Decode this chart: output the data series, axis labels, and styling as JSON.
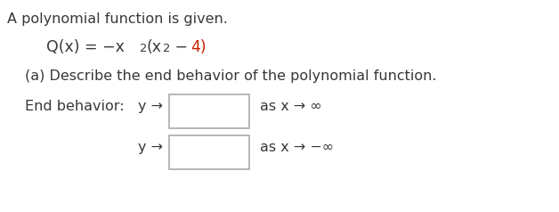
{
  "background_color": "#ffffff",
  "text_color": "#383838",
  "red_color": "#cc2200",
  "box_edge_color": "#aaaaaa",
  "box_face_color": "#ffffff",
  "line1": "A polynomial function is given.",
  "part_a": "(a) Describe the end behavior of the polynomial function.",
  "end_behavior_label": "End behavior:",
  "font_size_body": 11.5,
  "font_size_formula": 12.5
}
